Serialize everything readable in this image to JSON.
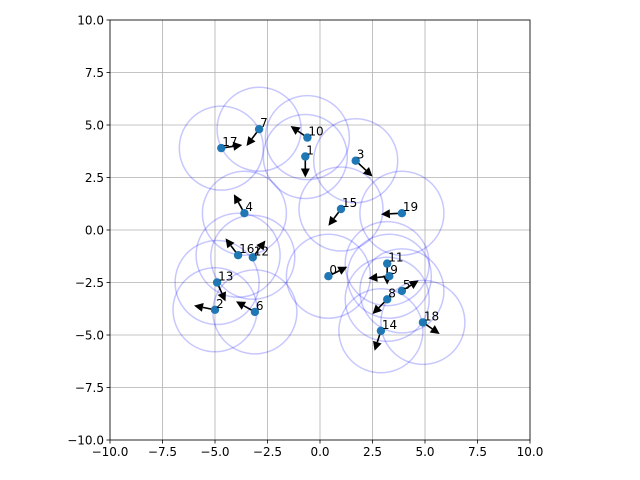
{
  "chart_data": {
    "type": "scatter",
    "title": "",
    "xlabel": "",
    "ylabel": "",
    "xlim": [
      -10,
      10
    ],
    "ylim": [
      -10,
      10
    ],
    "grid": true,
    "aspect": "equal",
    "x_ticks": [
      "−10.0",
      "−7.5",
      "−5.0",
      "−2.5",
      "0.0",
      "2.5",
      "5.0",
      "7.5",
      "10.0"
    ],
    "y_ticks": [
      "−10.0",
      "−7.5",
      "−5.0",
      "−2.5",
      "0.0",
      "2.5",
      "5.0",
      "7.5",
      "10.0"
    ],
    "circle_radius": 2.0,
    "colors": {
      "point": "#1f77b4",
      "circle": "#0000ff",
      "arrow": "#000000",
      "grid": "#b0b0b0"
    },
    "agents": [
      {
        "id": "0",
        "x": 0.4,
        "y": -2.2,
        "vx": 0.9,
        "vy": 0.45
      },
      {
        "id": "1",
        "x": -0.7,
        "y": 3.5,
        "vx": 0.0,
        "vy": -1.0
      },
      {
        "id": "2",
        "x": -5.0,
        "y": -3.8,
        "vx": -1.0,
        "vy": 0.2
      },
      {
        "id": "3",
        "x": 1.7,
        "y": 3.3,
        "vx": 0.8,
        "vy": -0.75
      },
      {
        "id": "4",
        "x": -3.6,
        "y": 0.8,
        "vx": -0.5,
        "vy": 0.9
      },
      {
        "id": "5",
        "x": 3.9,
        "y": -2.9,
        "vx": 0.8,
        "vy": 0.5
      },
      {
        "id": "6",
        "x": -3.1,
        "y": -3.9,
        "vx": -0.9,
        "vy": 0.5
      },
      {
        "id": "7",
        "x": -2.9,
        "y": 4.8,
        "vx": -0.6,
        "vy": -0.8
      },
      {
        "id": "8",
        "x": 3.2,
        "y": -3.3,
        "vx": -0.7,
        "vy": -0.7
      },
      {
        "id": "9",
        "x": 3.3,
        "y": -2.2,
        "vx": -1.0,
        "vy": -0.1
      },
      {
        "id": "10",
        "x": -0.6,
        "y": 4.4,
        "vx": -0.8,
        "vy": 0.55
      },
      {
        "id": "11",
        "x": 3.2,
        "y": -1.6,
        "vx": 0.0,
        "vy": -1.0
      },
      {
        "id": "12",
        "x": -3.2,
        "y": -1.3,
        "vx": 0.6,
        "vy": 0.8
      },
      {
        "id": "13",
        "x": -4.9,
        "y": -2.5,
        "vx": 0.4,
        "vy": -0.9
      },
      {
        "id": "14",
        "x": 2.9,
        "y": -4.8,
        "vx": -0.3,
        "vy": -0.95
      },
      {
        "id": "15",
        "x": 1.0,
        "y": 1.0,
        "vx": -0.6,
        "vy": -0.8
      },
      {
        "id": "16",
        "x": -3.9,
        "y": -1.2,
        "vx": -0.6,
        "vy": 0.8
      },
      {
        "id": "17",
        "x": -4.7,
        "y": 3.9,
        "vx": 1.0,
        "vy": 0.15
      },
      {
        "id": "18",
        "x": 4.9,
        "y": -4.4,
        "vx": 0.8,
        "vy": -0.55
      },
      {
        "id": "19",
        "x": 3.9,
        "y": 0.8,
        "vx": -1.0,
        "vy": -0.05
      }
    ]
  }
}
